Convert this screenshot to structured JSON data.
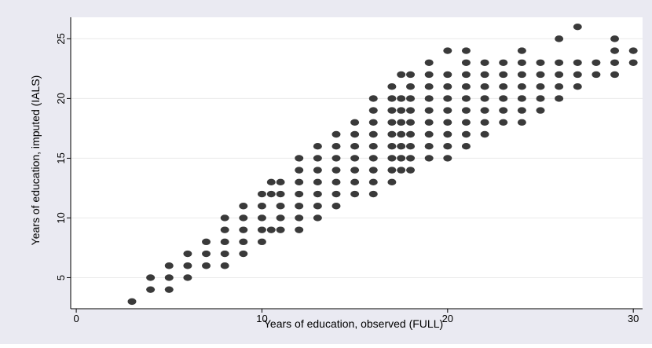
{
  "chart_data": {
    "type": "scatter",
    "xlabel": "Years of education, observed (FULL)",
    "ylabel": "Years of education, imputed (IALS)",
    "xlim": [
      -0.3,
      30.5
    ],
    "ylim": [
      2.4,
      26.8
    ],
    "xticks": [
      0,
      10,
      20,
      30
    ],
    "yticks": [
      5,
      10,
      15,
      20,
      25
    ],
    "grid": "horizontal",
    "legend": "none",
    "colors": {
      "background": "#eaeaf2",
      "plot_area": "#ffffff",
      "gridline": "#eaeaea",
      "marker": "#3a3a3a",
      "text": "#000000"
    },
    "series": [
      {
        "points": [
          [
            3,
            3
          ],
          [
            4,
            4
          ],
          [
            4,
            5
          ],
          [
            5,
            4
          ],
          [
            5,
            5
          ],
          [
            5,
            6
          ],
          [
            6,
            5
          ],
          [
            6,
            6
          ],
          [
            6,
            7
          ],
          [
            7,
            6
          ],
          [
            7,
            7
          ],
          [
            7,
            8
          ],
          [
            8,
            6
          ],
          [
            8,
            7
          ],
          [
            8,
            8
          ],
          [
            8,
            9
          ],
          [
            8,
            10
          ],
          [
            9,
            7
          ],
          [
            9,
            8
          ],
          [
            9,
            9
          ],
          [
            9,
            10
          ],
          [
            9,
            11
          ],
          [
            10,
            8
          ],
          [
            10,
            9
          ],
          [
            10,
            10
          ],
          [
            10,
            11
          ],
          [
            10,
            12
          ],
          [
            10.5,
            9
          ],
          [
            10.5,
            12
          ],
          [
            10.5,
            13
          ],
          [
            11,
            9
          ],
          [
            11,
            10
          ],
          [
            11,
            11
          ],
          [
            11,
            12
          ],
          [
            11,
            13
          ],
          [
            12,
            9
          ],
          [
            12,
            10
          ],
          [
            12,
            11
          ],
          [
            12,
            12
          ],
          [
            12,
            13
          ],
          [
            12,
            14
          ],
          [
            12,
            15
          ],
          [
            13,
            10
          ],
          [
            13,
            11
          ],
          [
            13,
            12
          ],
          [
            13,
            13
          ],
          [
            13,
            14
          ],
          [
            13,
            15
          ],
          [
            13,
            16
          ],
          [
            14,
            11
          ],
          [
            14,
            12
          ],
          [
            14,
            13
          ],
          [
            14,
            14
          ],
          [
            14,
            15
          ],
          [
            14,
            16
          ],
          [
            14,
            17
          ],
          [
            15,
            12
          ],
          [
            15,
            13
          ],
          [
            15,
            14
          ],
          [
            15,
            15
          ],
          [
            15,
            16
          ],
          [
            15,
            17
          ],
          [
            15,
            18
          ],
          [
            16,
            12
          ],
          [
            16,
            13
          ],
          [
            16,
            14
          ],
          [
            16,
            15
          ],
          [
            16,
            16
          ],
          [
            16,
            17
          ],
          [
            16,
            18
          ],
          [
            16,
            19
          ],
          [
            16,
            20
          ],
          [
            17,
            13
          ],
          [
            17,
            14
          ],
          [
            17,
            15
          ],
          [
            17,
            16
          ],
          [
            17,
            17
          ],
          [
            17,
            18
          ],
          [
            17,
            19
          ],
          [
            17,
            20
          ],
          [
            17,
            21
          ],
          [
            17.5,
            14
          ],
          [
            17.5,
            15
          ],
          [
            17.5,
            16
          ],
          [
            17.5,
            17
          ],
          [
            17.5,
            18
          ],
          [
            17.5,
            19
          ],
          [
            17.5,
            20
          ],
          [
            17.5,
            22
          ],
          [
            18,
            14
          ],
          [
            18,
            15
          ],
          [
            18,
            16
          ],
          [
            18,
            17
          ],
          [
            18,
            18
          ],
          [
            18,
            19
          ],
          [
            18,
            20
          ],
          [
            18,
            21
          ],
          [
            18,
            22
          ],
          [
            19,
            15
          ],
          [
            19,
            16
          ],
          [
            19,
            17
          ],
          [
            19,
            18
          ],
          [
            19,
            19
          ],
          [
            19,
            20
          ],
          [
            19,
            21
          ],
          [
            19,
            22
          ],
          [
            19,
            23
          ],
          [
            20,
            15
          ],
          [
            20,
            16
          ],
          [
            20,
            17
          ],
          [
            20,
            18
          ],
          [
            20,
            19
          ],
          [
            20,
            20
          ],
          [
            20,
            21
          ],
          [
            20,
            22
          ],
          [
            20,
            24
          ],
          [
            21,
            16
          ],
          [
            21,
            17
          ],
          [
            21,
            18
          ],
          [
            21,
            19
          ],
          [
            21,
            20
          ],
          [
            21,
            21
          ],
          [
            21,
            22
          ],
          [
            21,
            23
          ],
          [
            21,
            24
          ],
          [
            22,
            17
          ],
          [
            22,
            18
          ],
          [
            22,
            19
          ],
          [
            22,
            20
          ],
          [
            22,
            21
          ],
          [
            22,
            22
          ],
          [
            22,
            23
          ],
          [
            23,
            18
          ],
          [
            23,
            19
          ],
          [
            23,
            20
          ],
          [
            23,
            21
          ],
          [
            23,
            22
          ],
          [
            23,
            23
          ],
          [
            24,
            18
          ],
          [
            24,
            19
          ],
          [
            24,
            20
          ],
          [
            24,
            21
          ],
          [
            24,
            22
          ],
          [
            24,
            23
          ],
          [
            24,
            24
          ],
          [
            25,
            19
          ],
          [
            25,
            20
          ],
          [
            25,
            21
          ],
          [
            25,
            22
          ],
          [
            25,
            23
          ],
          [
            26,
            20
          ],
          [
            26,
            21
          ],
          [
            26,
            22
          ],
          [
            26,
            23
          ],
          [
            26,
            25
          ],
          [
            27,
            21
          ],
          [
            27,
            22
          ],
          [
            27,
            23
          ],
          [
            27,
            26
          ],
          [
            28,
            22
          ],
          [
            28,
            23
          ],
          [
            29,
            22
          ],
          [
            29,
            23
          ],
          [
            29,
            24
          ],
          [
            29,
            25
          ],
          [
            30,
            23
          ],
          [
            30,
            24
          ]
        ]
      }
    ]
  }
}
